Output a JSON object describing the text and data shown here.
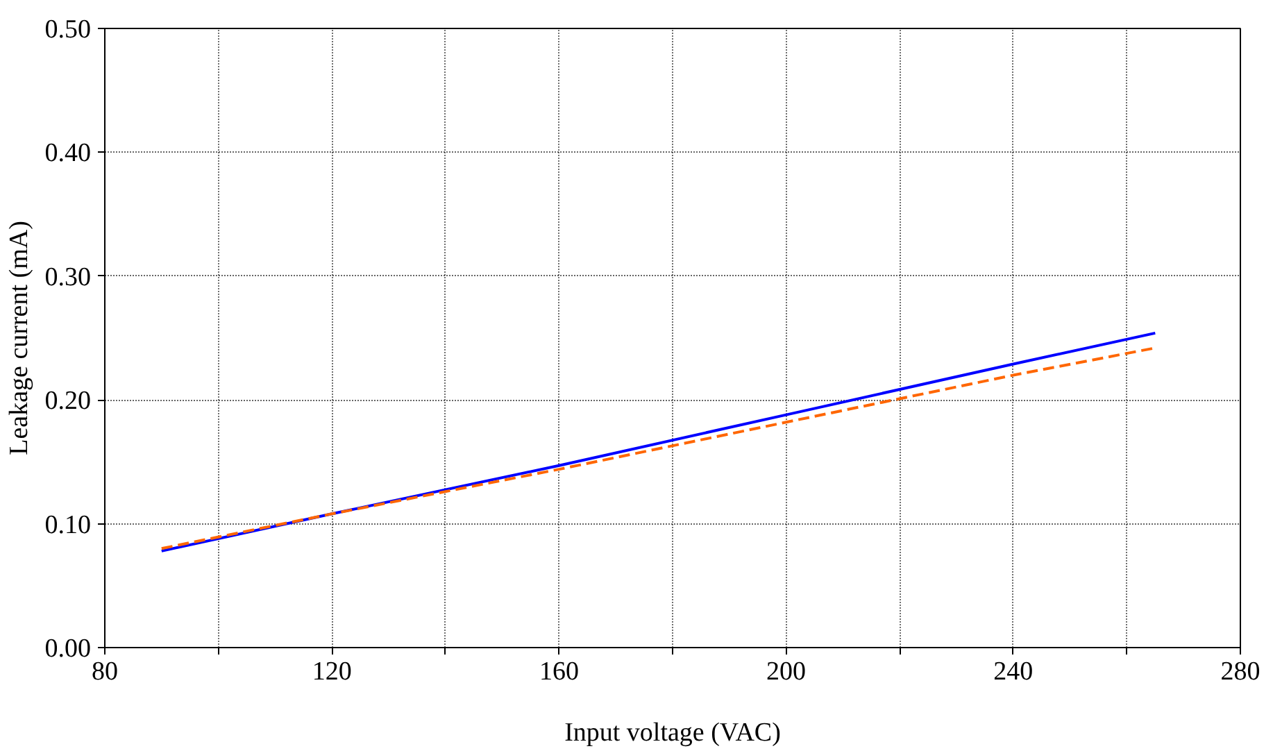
{
  "chart_data": {
    "type": "line",
    "xlabel": "Input voltage (VAC)",
    "ylabel": "Leakage current (mA)",
    "xlim": [
      80,
      280
    ],
    "ylim": [
      0,
      0.5
    ],
    "xticks": [
      80,
      {
        "value": 100,
        "label": null
      },
      120,
      {
        "value": 140,
        "label": null
      },
      160,
      {
        "value": 180,
        "label": null
      },
      200,
      {
        "value": 220,
        "label": null
      },
      240,
      {
        "value": 260,
        "label": null
      },
      280
    ],
    "yticks": [
      {
        "value": 0,
        "label": "0.00"
      },
      {
        "value": 0.1,
        "label": "0.10"
      },
      {
        "value": 0.2,
        "label": "0.20"
      },
      {
        "value": 0.3,
        "label": "0.30"
      },
      {
        "value": 0.4,
        "label": "0.40"
      },
      {
        "value": 0.5,
        "label": "0.50"
      }
    ],
    "grid": true,
    "series": [
      {
        "color": "#0000ff",
        "line_style": "solid",
        "x": [
          90,
          120,
          160,
          200,
          240,
          265
        ],
        "values": [
          0.078,
          0.108,
          0.147,
          0.188,
          0.229,
          0.254
        ]
      },
      {
        "color": "#ff6600",
        "line_style": "dashed",
        "x": [
          90,
          120,
          160,
          200,
          240,
          265
        ],
        "values": [
          0.08,
          0.108,
          0.144,
          0.182,
          0.22,
          0.242
        ]
      }
    ]
  }
}
